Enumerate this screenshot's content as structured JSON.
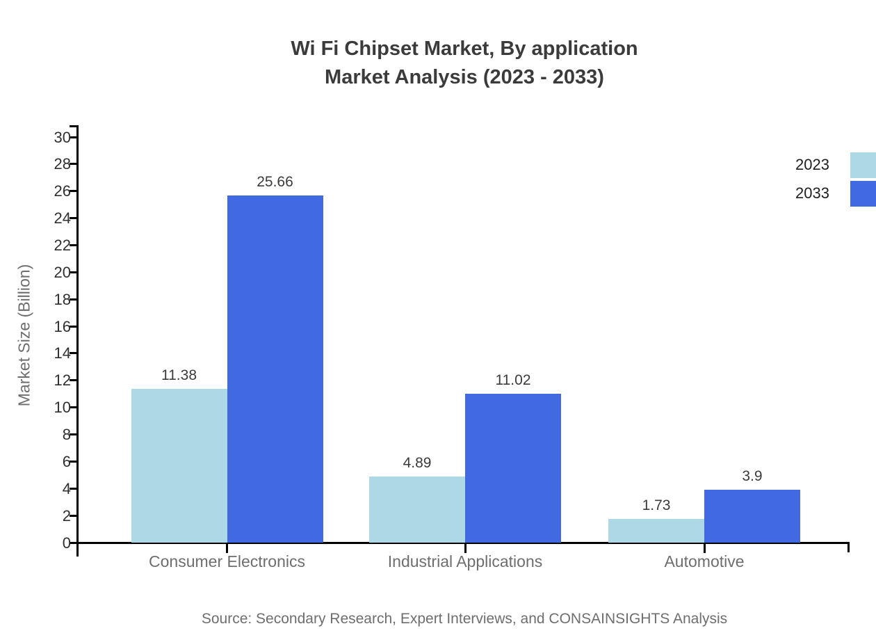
{
  "title": {
    "line1": "Wi Fi Chipset Market, By application",
    "line2": "Market Analysis (2023 - 2033)"
  },
  "ylabel": "Market Size (Billion)",
  "source": "Source: Secondary Research, Expert Interviews, and CONSAINSIGHTS Analysis",
  "colors": {
    "series_2023": "#ADD8E6",
    "series_2033": "#4169E1",
    "axis": "#000000",
    "title_text": "#3B3B3B",
    "muted_text": "#6E6E6E",
    "tick_text": "#2F2F2F"
  },
  "chart_data": {
    "type": "bar",
    "categories": [
      "Consumer Electronics",
      "Industrial Applications",
      "Automotive"
    ],
    "series": [
      {
        "name": "2023",
        "color": "#ADD8E6",
        "values": [
          11.38,
          4.89,
          1.73
        ]
      },
      {
        "name": "2033",
        "color": "#4169E1",
        "values": [
          25.66,
          11.02,
          3.9
        ]
      }
    ],
    "title": "Wi Fi Chipset Market, By application Market Analysis (2023 - 2033)",
    "xlabel": "",
    "ylabel": "Market Size (Billion)",
    "ylim": [
      0,
      30
    ],
    "ytick_step": 2,
    "grid": false,
    "legend_position": "top-right",
    "value_labels": true
  }
}
